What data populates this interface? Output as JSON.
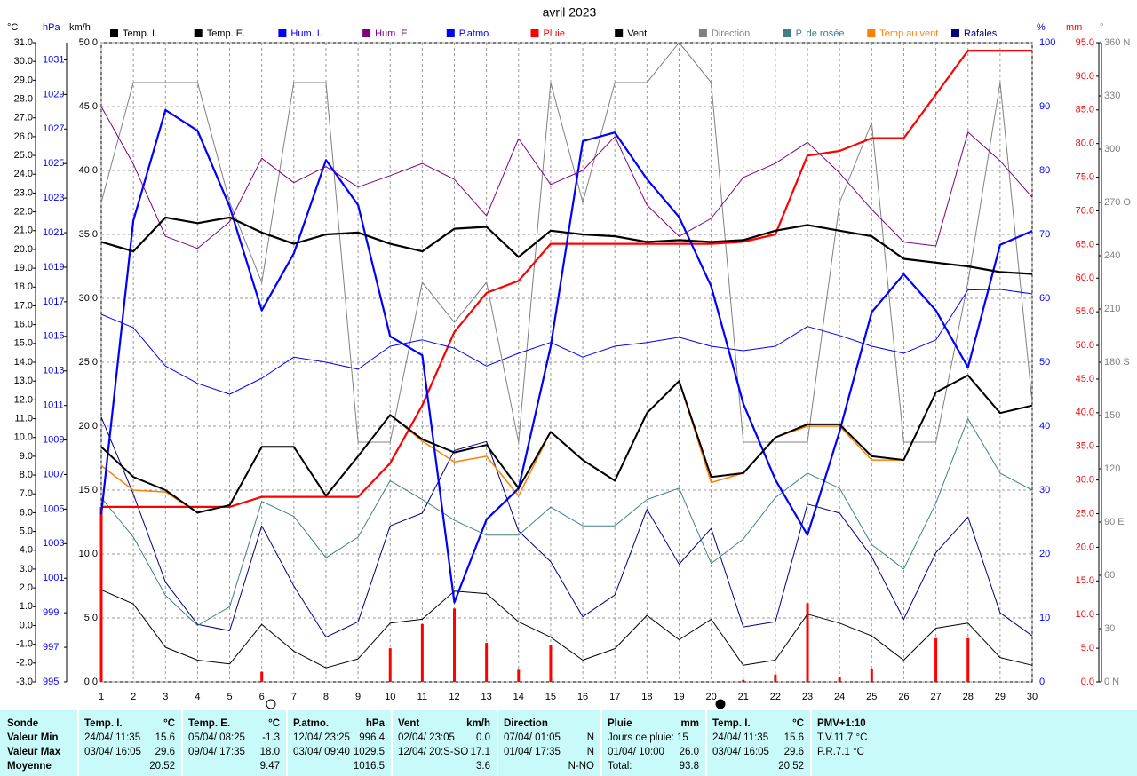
{
  "chart_data": {
    "type": "line",
    "title": "avril 2023",
    "x": [
      1,
      2,
      3,
      4,
      5,
      6,
      7,
      8,
      9,
      10,
      11,
      12,
      13,
      14,
      15,
      16,
      17,
      18,
      19,
      20,
      21,
      22,
      23,
      24,
      25,
      26,
      27,
      28,
      29,
      30
    ],
    "xlim": [
      1,
      30
    ],
    "xticks": [
      1,
      2,
      3,
      4,
      5,
      6,
      7,
      8,
      9,
      10,
      11,
      12,
      13,
      14,
      15,
      16,
      17,
      18,
      19,
      20,
      21,
      22,
      23,
      24,
      25,
      26,
      27,
      28,
      29,
      30
    ],
    "grid": true,
    "axes": {
      "temp": {
        "label": "°C",
        "side": "left",
        "color": "#000000",
        "ylim": [
          -3,
          31
        ],
        "yticks": [
          {
            "value": -3,
            "label": "-3.0"
          },
          {
            "value": -2,
            "label": "-2.0"
          },
          {
            "value": -1,
            "label": "-1.0"
          },
          {
            "value": 0,
            "label": "0.0"
          },
          {
            "value": 1,
            "label": "1.0"
          },
          {
            "value": 2,
            "label": "2.0"
          },
          {
            "value": 3,
            "label": "3.0"
          },
          {
            "value": 4,
            "label": "4.0"
          },
          {
            "value": 5,
            "label": "5.0"
          },
          {
            "value": 6,
            "label": "6.0"
          },
          {
            "value": 7,
            "label": "7.0"
          },
          {
            "value": 8,
            "label": "8.0"
          },
          {
            "value": 9,
            "label": "9.0"
          },
          {
            "value": 10,
            "label": "10.0"
          },
          {
            "value": 11,
            "label": "11.0"
          },
          {
            "value": 12,
            "label": "12.0"
          },
          {
            "value": 13,
            "label": "13.0"
          },
          {
            "value": 14,
            "label": "14.0"
          },
          {
            "value": 15,
            "label": "15.0"
          },
          {
            "value": 16,
            "label": "16.0"
          },
          {
            "value": 17,
            "label": "17.0"
          },
          {
            "value": 18,
            "label": "18.0"
          },
          {
            "value": 19,
            "label": "19.0"
          },
          {
            "value": 20,
            "label": "20.0"
          },
          {
            "value": 21,
            "label": "21.0"
          },
          {
            "value": 22,
            "label": "22.0"
          },
          {
            "value": 23,
            "label": "23.0"
          },
          {
            "value": 24,
            "label": "24.0"
          },
          {
            "value": 25,
            "label": "25.0"
          },
          {
            "value": 26,
            "label": "26.0"
          },
          {
            "value": 27,
            "label": "27.0"
          },
          {
            "value": 28,
            "label": "28.0"
          },
          {
            "value": 29,
            "label": "29.0"
          },
          {
            "value": 30,
            "label": "30.0"
          },
          {
            "value": 31,
            "label": "31.0"
          }
        ]
      },
      "hpa": {
        "label": "hPa",
        "side": "left",
        "color": "#0000ff",
        "ylim": [
          995,
          1032
        ],
        "yticks": [
          995,
          997,
          999,
          1001,
          1003,
          1005,
          1007,
          1009,
          1011,
          1013,
          1015,
          1017,
          1019,
          1021,
          1023,
          1025,
          1027,
          1029,
          1031
        ]
      },
      "kmh": {
        "label": "km/h",
        "side": "left",
        "color": "#000000",
        "ylim": [
          0,
          50
        ],
        "yticks": [
          {
            "value": 0,
            "label": "0.0"
          },
          {
            "value": 5,
            "label": "5.0"
          },
          {
            "value": 10,
            "label": "10.0"
          },
          {
            "value": 15,
            "label": "15.0"
          },
          {
            "value": 20,
            "label": "20.0"
          },
          {
            "value": 25,
            "label": "25.0"
          },
          {
            "value": 30,
            "label": "30.0"
          },
          {
            "value": 35,
            "label": "35.0"
          },
          {
            "value": 40,
            "label": "40.0"
          },
          {
            "value": 45,
            "label": "45.0"
          },
          {
            "value": 50,
            "label": "50.0"
          }
        ]
      },
      "pct": {
        "label": "%",
        "side": "right",
        "color": "#0000ff",
        "ylim": [
          0,
          100
        ],
        "yticks": [
          0,
          10,
          20,
          30,
          40,
          50,
          60,
          70,
          80,
          90,
          100
        ]
      },
      "mm": {
        "label": "mm",
        "side": "right",
        "color": "#ff0000",
        "ylim": [
          0,
          95
        ],
        "yticks": [
          {
            "value": 0,
            "label": "0.0"
          },
          {
            "value": 5,
            "label": "5.0"
          },
          {
            "value": 10,
            "label": "10.0"
          },
          {
            "value": 15,
            "label": "15.0"
          },
          {
            "value": 20,
            "label": "20.0"
          },
          {
            "value": 25,
            "label": "25.0"
          },
          {
            "value": 30,
            "label": "30.0"
          },
          {
            "value": 35,
            "label": "35.0"
          },
          {
            "value": 40,
            "label": "40.0"
          },
          {
            "value": 45,
            "label": "45.0"
          },
          {
            "value": 50,
            "label": "50.0"
          },
          {
            "value": 55,
            "label": "55.0"
          },
          {
            "value": 60,
            "label": "60.0"
          },
          {
            "value": 65,
            "label": "65.0"
          },
          {
            "value": 70,
            "label": "70.0"
          },
          {
            "value": 75,
            "label": "75.0"
          },
          {
            "value": 80,
            "label": "80.0"
          },
          {
            "value": 85,
            "label": "85.0"
          },
          {
            "value": 90,
            "label": "90.0"
          },
          {
            "value": 95,
            "label": "95.0"
          }
        ]
      },
      "deg": {
        "label": "°",
        "side": "right",
        "color": "#808080",
        "ylim": [
          0,
          360
        ],
        "yticks": [
          {
            "value": 0,
            "label": "0 N"
          },
          30,
          60,
          {
            "value": 90,
            "label": "90 E"
          },
          120,
          150,
          {
            "value": 180,
            "label": "180 S"
          },
          210,
          240,
          {
            "value": 270,
            "label": "270 O"
          },
          300,
          330,
          {
            "value": 360,
            "label": "360 N"
          }
        ]
      }
    },
    "series": [
      {
        "name": "Temp. I.",
        "color": "#000000",
        "axis": "temp",
        "width": 2.2,
        "values": [
          20.4,
          19.9,
          21.7,
          21.4,
          21.7,
          20.9,
          20.3,
          20.8,
          20.9,
          20.3,
          19.9,
          21.1,
          21.2,
          19.6,
          21.0,
          20.8,
          20.7,
          20.4,
          20.5,
          20.4,
          20.5,
          21.0,
          21.3,
          21.0,
          20.7,
          19.5,
          19.3,
          19.1,
          18.8,
          18.7
        ]
      },
      {
        "name": "Temp. E.",
        "color": "#000000",
        "axis": "temp",
        "width": 2,
        "values": [
          9.5,
          7.9,
          7.2,
          6.0,
          6.4,
          9.5,
          9.5,
          6.9,
          9.0,
          11.2,
          9.9,
          9.2,
          9.6,
          7.3,
          10.3,
          8.8,
          7.7,
          11.3,
          13.0,
          7.9,
          8.1,
          10.0,
          10.7,
          10.7,
          9.0,
          8.8,
          12.4,
          13.3,
          11.3,
          11.7
        ]
      },
      {
        "name": "Hum. I.",
        "color": "#0000ff",
        "axis": "pct",
        "width": 1,
        "values": [
          57.5,
          55.4,
          49.4,
          46.7,
          45.0,
          47.5,
          50.8,
          50.0,
          48.9,
          52.5,
          53.5,
          52.2,
          49.4,
          51.4,
          53.1,
          50.8,
          52.5,
          53.1,
          53.9,
          52.5,
          51.8,
          52.5,
          55.6,
          54.2,
          52.5,
          51.4,
          53.5,
          61.3,
          61.4,
          60.7
        ]
      },
      {
        "name": "Hum. E.",
        "color": "#800080",
        "axis": "pct",
        "width": 1,
        "values": [
          90.0,
          81.0,
          69.7,
          67.8,
          72.0,
          81.9,
          78.1,
          80.6,
          77.4,
          79.2,
          81.1,
          78.6,
          72.9,
          85.0,
          77.8,
          80.0,
          85.3,
          74.6,
          69.7,
          72.5,
          78.9,
          81.1,
          84.4,
          79.6,
          73.9,
          68.8,
          68.2,
          86.0,
          81.5,
          75.8
        ]
      },
      {
        "name": "P.atmo.",
        "color": "#0000ff",
        "axis": "hpa",
        "width": 2.2,
        "values": [
          1004.7,
          1021.7,
          1028.1,
          1026.9,
          1022.5,
          1016.5,
          1019.8,
          1025.2,
          1022.6,
          1015.0,
          1013.9,
          999.6,
          1004.4,
          1006.2,
          1014.4,
          1026.3,
          1026.8,
          1024.1,
          1021.9,
          1017.9,
          1011.1,
          1006.7,
          1003.5,
          1009.5,
          1016.4,
          1018.6,
          1016.5,
          1013.2,
          1020.3,
          1021.1
        ]
      },
      {
        "name": "Pluie",
        "color": "#ff0000",
        "axis": "mm",
        "width": 2.2,
        "values": [
          26.0,
          26.0,
          26.0,
          26.0,
          26.0,
          27.5,
          27.5,
          27.5,
          27.5,
          32.5,
          41.1,
          52.0,
          57.8,
          59.6,
          65.1,
          65.1,
          65.1,
          65.1,
          65.1,
          65.1,
          65.4,
          66.5,
          78.2,
          78.9,
          80.8,
          80.8,
          87.3,
          93.8,
          93.8,
          93.8
        ]
      },
      {
        "name": "Vent",
        "color": "#000000",
        "axis": "kmh",
        "width": 1,
        "values": [
          7.2,
          6.1,
          2.7,
          1.7,
          1.4,
          4.5,
          2.4,
          1.1,
          1.8,
          4.6,
          4.9,
          7.1,
          6.9,
          4.7,
          3.5,
          1.7,
          2.6,
          5.2,
          3.3,
          4.9,
          1.3,
          1.7,
          5.3,
          4.6,
          3.6,
          1.7,
          4.2,
          4.6,
          1.9,
          1.3
        ]
      },
      {
        "name": "Direction",
        "color": "#808080",
        "axis": "deg",
        "width": 1,
        "values": [
          270,
          337.5,
          337.5,
          337.5,
          270,
          225,
          337.5,
          337.5,
          135,
          135,
          225,
          202.5,
          225,
          135,
          337.5,
          270,
          337.5,
          337.5,
          360,
          337.5,
          135,
          135,
          135,
          270,
          315,
          135,
          135,
          225,
          337.5,
          157.5
        ]
      },
      {
        "name": "P. de rosée",
        "color": "#408080",
        "axis": "temp",
        "width": 1,
        "values": [
          6.8,
          4.7,
          1.6,
          0.0,
          1.0,
          6.6,
          5.8,
          3.6,
          4.7,
          7.7,
          6.7,
          5.6,
          4.8,
          4.8,
          6.3,
          5.3,
          5.3,
          6.7,
          7.3,
          3.3,
          4.6,
          6.8,
          8.1,
          7.3,
          4.3,
          3.0,
          6.5,
          11.0,
          8.1,
          7.2
        ]
      },
      {
        "name": "Temp au vent",
        "color": "#ff8000",
        "axis": "temp",
        "width": 1.5,
        "values": [
          8.5,
          7.2,
          7.1,
          6.0,
          6.4,
          9.5,
          9.5,
          6.9,
          9.0,
          11.2,
          9.8,
          8.7,
          9.0,
          6.9,
          10.3,
          8.8,
          7.7,
          11.3,
          13.0,
          7.6,
          8.1,
          10.0,
          10.6,
          10.6,
          8.8,
          8.8,
          12.4,
          13.3,
          11.3,
          11.7
        ]
      },
      {
        "name": "Rafales",
        "color": "#000080",
        "axis": "kmh",
        "width": 1,
        "values": [
          20.7,
          14.7,
          7.8,
          4.5,
          4.0,
          12.2,
          7.5,
          3.5,
          4.7,
          12.2,
          13.2,
          18.1,
          18.8,
          11.8,
          9.4,
          5.1,
          6.8,
          13.5,
          9.2,
          12.0,
          4.3,
          4.7,
          13.9,
          13.2,
          9.8,
          4.9,
          10.1,
          12.9,
          5.4,
          3.6
        ]
      }
    ],
    "rain_bars": {
      "color": "#ff0000",
      "axis": "mm",
      "values": [
        26.0,
        0,
        0,
        0,
        0,
        1.5,
        0,
        0,
        0,
        5.0,
        8.6,
        10.9,
        5.8,
        1.8,
        5.5,
        0,
        0,
        0,
        0,
        0,
        0.3,
        1.1,
        11.7,
        0.7,
        1.9,
        0,
        6.5,
        6.5,
        0,
        0
      ]
    }
  },
  "summary": {
    "labels": [
      "Sonde",
      "Valeur Min",
      "Valeur Max",
      "Moyenne"
    ],
    "blocks": [
      {
        "title": "Temp. I.",
        "unit": "°C",
        "rows": [
          [
            "24/04/ 11:35",
            "15.6"
          ],
          [
            "03/04/ 16:05",
            "29.6"
          ],
          [
            "20.52"
          ]
        ]
      },
      {
        "title": "Temp. E.",
        "unit": "°C",
        "rows": [
          [
            "05/04/ 08:25",
            "-1.3"
          ],
          [
            "09/04/ 17:35",
            "18.0"
          ],
          [
            "9.47"
          ]
        ]
      },
      {
        "title": "P.atmo.",
        "unit": "hPa",
        "rows": [
          [
            "12/04/ 23:25",
            "996.4"
          ],
          [
            "03/04/ 09:40",
            "1029.5"
          ],
          [
            "1016.5"
          ]
        ]
      },
      {
        "title": "Vent",
        "unit": "km/h",
        "rows": [
          [
            "02/04/ 23:05",
            "0.0"
          ],
          [
            "12/04/ 20:S-SO",
            "17.1"
          ],
          [
            "3.6"
          ]
        ]
      },
      {
        "title": "Direction",
        "rows": [
          [
            "07/04/ 01:05",
            "N"
          ],
          [
            "01/04/ 17:35",
            "N"
          ],
          [
            "N-NO"
          ]
        ]
      },
      {
        "title": "Pluie",
        "unit": "mm",
        "rows": [
          [
            "Jours de pluie: 15"
          ],
          [
            "01/04/ 10:00",
            "26.0"
          ],
          [
            "Total:",
            "93.8"
          ]
        ]
      },
      {
        "title": "Temp. I.",
        "unit": "°C",
        "rows": [
          [
            "24/04/ 11:35",
            "15.6"
          ],
          [
            "03/04/ 16:05",
            "29.6"
          ],
          [
            "20.52"
          ]
        ]
      },
      {
        "title": "PMV+1:10",
        "rows": [
          [
            "T.V.11.7 °C"
          ],
          [
            "P.R.7.1 °C"
          ]
        ]
      }
    ]
  }
}
